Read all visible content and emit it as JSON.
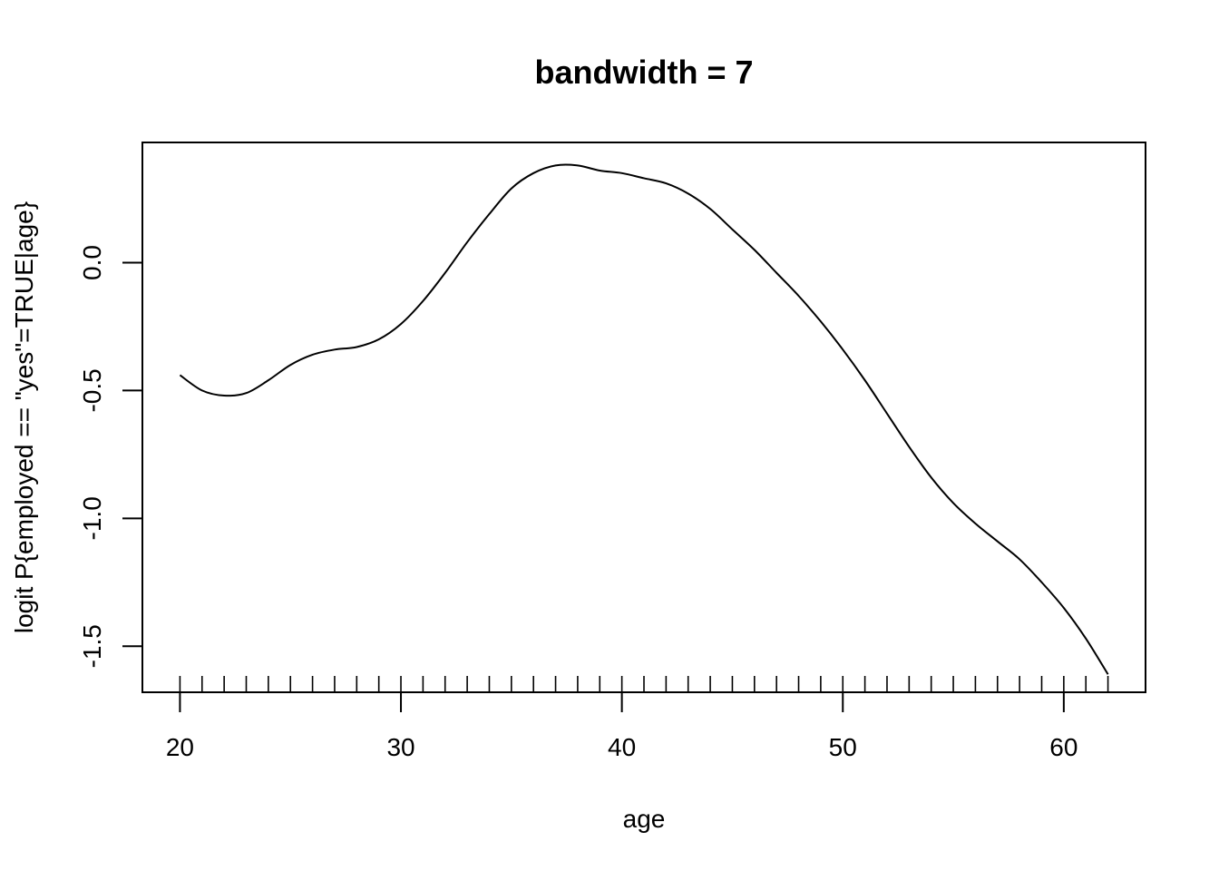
{
  "chart_data": {
    "type": "line",
    "title": "bandwidth = 7",
    "xlabel": "age",
    "ylabel": "logit P{employed == \"yes\"=TRUE|age}",
    "xlim": [
      18.3,
      63.7
    ],
    "ylim": [
      -1.68,
      0.47
    ],
    "x_ticks": [
      20,
      30,
      40,
      50,
      60
    ],
    "x_tick_labels": [
      "20",
      "30",
      "40",
      "50",
      "60"
    ],
    "y_ticks": [
      -1.5,
      -1.0,
      -0.5,
      0.0
    ],
    "y_tick_labels": [
      "-1.5",
      "-1.0",
      "-0.5",
      "0.0"
    ],
    "grid": false,
    "rug": [
      20,
      21,
      22,
      23,
      24,
      25,
      26,
      27,
      28,
      29,
      30,
      31,
      32,
      33,
      34,
      35,
      36,
      37,
      38,
      39,
      40,
      41,
      42,
      43,
      44,
      45,
      46,
      47,
      48,
      49,
      50,
      51,
      52,
      53,
      54,
      55,
      56,
      57,
      58,
      59,
      60,
      61,
      62
    ],
    "series": [
      {
        "x": [
          20,
          21,
          22,
          23,
          24,
          25,
          26,
          27,
          28,
          29,
          30,
          31,
          32,
          33,
          34,
          35,
          36,
          37,
          38,
          39,
          40,
          41,
          42,
          43,
          44,
          45,
          46,
          47,
          48,
          49,
          50,
          51,
          52,
          53,
          54,
          55,
          56,
          57,
          58,
          59,
          60,
          61,
          62
        ],
        "y": [
          -0.44,
          -0.5,
          -0.52,
          -0.51,
          -0.46,
          -0.4,
          -0.36,
          -0.34,
          -0.33,
          -0.3,
          -0.24,
          -0.15,
          -0.04,
          0.08,
          0.19,
          0.29,
          0.35,
          0.38,
          0.38,
          0.36,
          0.35,
          0.33,
          0.31,
          0.27,
          0.21,
          0.13,
          0.05,
          -0.04,
          -0.13,
          -0.23,
          -0.34,
          -0.46,
          -0.59,
          -0.72,
          -0.84,
          -0.94,
          -1.02,
          -1.09,
          -1.16,
          -1.25,
          -1.35,
          -1.47,
          -1.61
        ]
      }
    ]
  }
}
